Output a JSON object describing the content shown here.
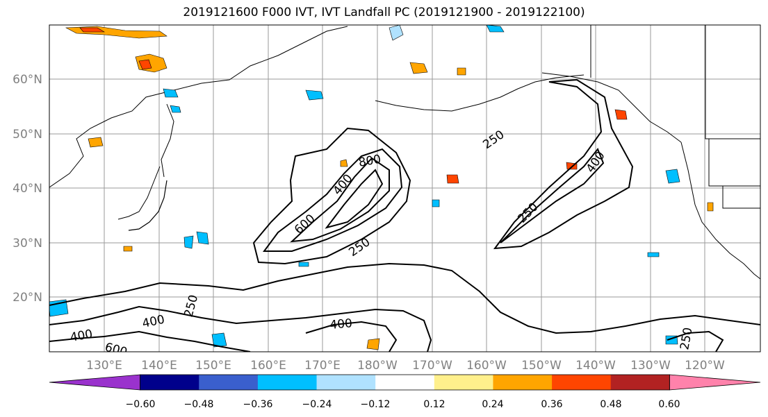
{
  "title": "2019121600 F000 IVT, IVT Landfall PC (2019121900 - 2019122100)",
  "lat_labels": [
    "60°N",
    "50°N",
    "40°N",
    "30°N",
    "20°N"
  ],
  "lon_labels": [
    "130°E",
    "140°E",
    "150°E",
    "160°E",
    "170°E",
    "180°W",
    "170°W",
    "160°W",
    "150°W",
    "140°W",
    "130°W",
    "120°W"
  ],
  "contour_labels": [
    "800",
    "400",
    "600",
    "250",
    "250",
    "400",
    "250",
    "250",
    "400",
    "400",
    "600",
    "400",
    "250"
  ],
  "colorbar": {
    "colors": [
      "#9a32cd",
      "#00008b",
      "#3a5fcd",
      "#00bfff",
      "#b0e2ff",
      "#ffffff",
      "#fff08c",
      "#ffa500",
      "#ff4500",
      "#b22222",
      "#ff82ab"
    ],
    "tick_labels": [
      "−0.60",
      "−0.48",
      "−0.36",
      "−0.24",
      "−0.12",
      "0.12",
      "0.24",
      "0.36",
      "0.48",
      "0.60"
    ]
  }
}
